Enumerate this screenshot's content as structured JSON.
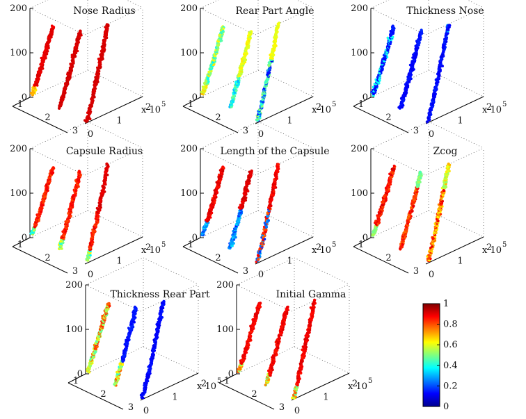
{
  "chart_data": {
    "type": "scatter",
    "panels": [
      {
        "title": "Nose Radius",
        "pattern": "nose_radius"
      },
      {
        "title": "Rear Part Angle",
        "pattern": "rear_angle"
      },
      {
        "title": "Thickness Nose",
        "pattern": "thick_nose"
      },
      {
        "title": "Capsule Radius",
        "pattern": "capsule_radius"
      },
      {
        "title": "Length of the Capsule",
        "pattern": "capsule_length"
      },
      {
        "title": "Zcog",
        "pattern": "zcog"
      },
      {
        "title": "Thickness Rear Part",
        "pattern": "thick_rear"
      },
      {
        "title": "Initial Gamma",
        "pattern": "initial_gamma"
      }
    ],
    "axes": {
      "z_ticks": [
        "0",
        "100",
        "200"
      ],
      "z_range": [
        0,
        200
      ],
      "depth_ticks": [
        "1",
        "2",
        "3"
      ],
      "depth_range": [
        1,
        3
      ],
      "x_ticks": [
        "0",
        "1",
        "2"
      ],
      "x_range": [
        0,
        2
      ],
      "x_multiplier": "x 10",
      "x_exponent": "5"
    },
    "grid": true,
    "colorbar": {
      "colormap": "jet",
      "range": [
        0,
        1
      ],
      "ticks": [
        "0",
        "0.2",
        "0.4",
        "0.6",
        "0.8",
        "1"
      ]
    }
  }
}
